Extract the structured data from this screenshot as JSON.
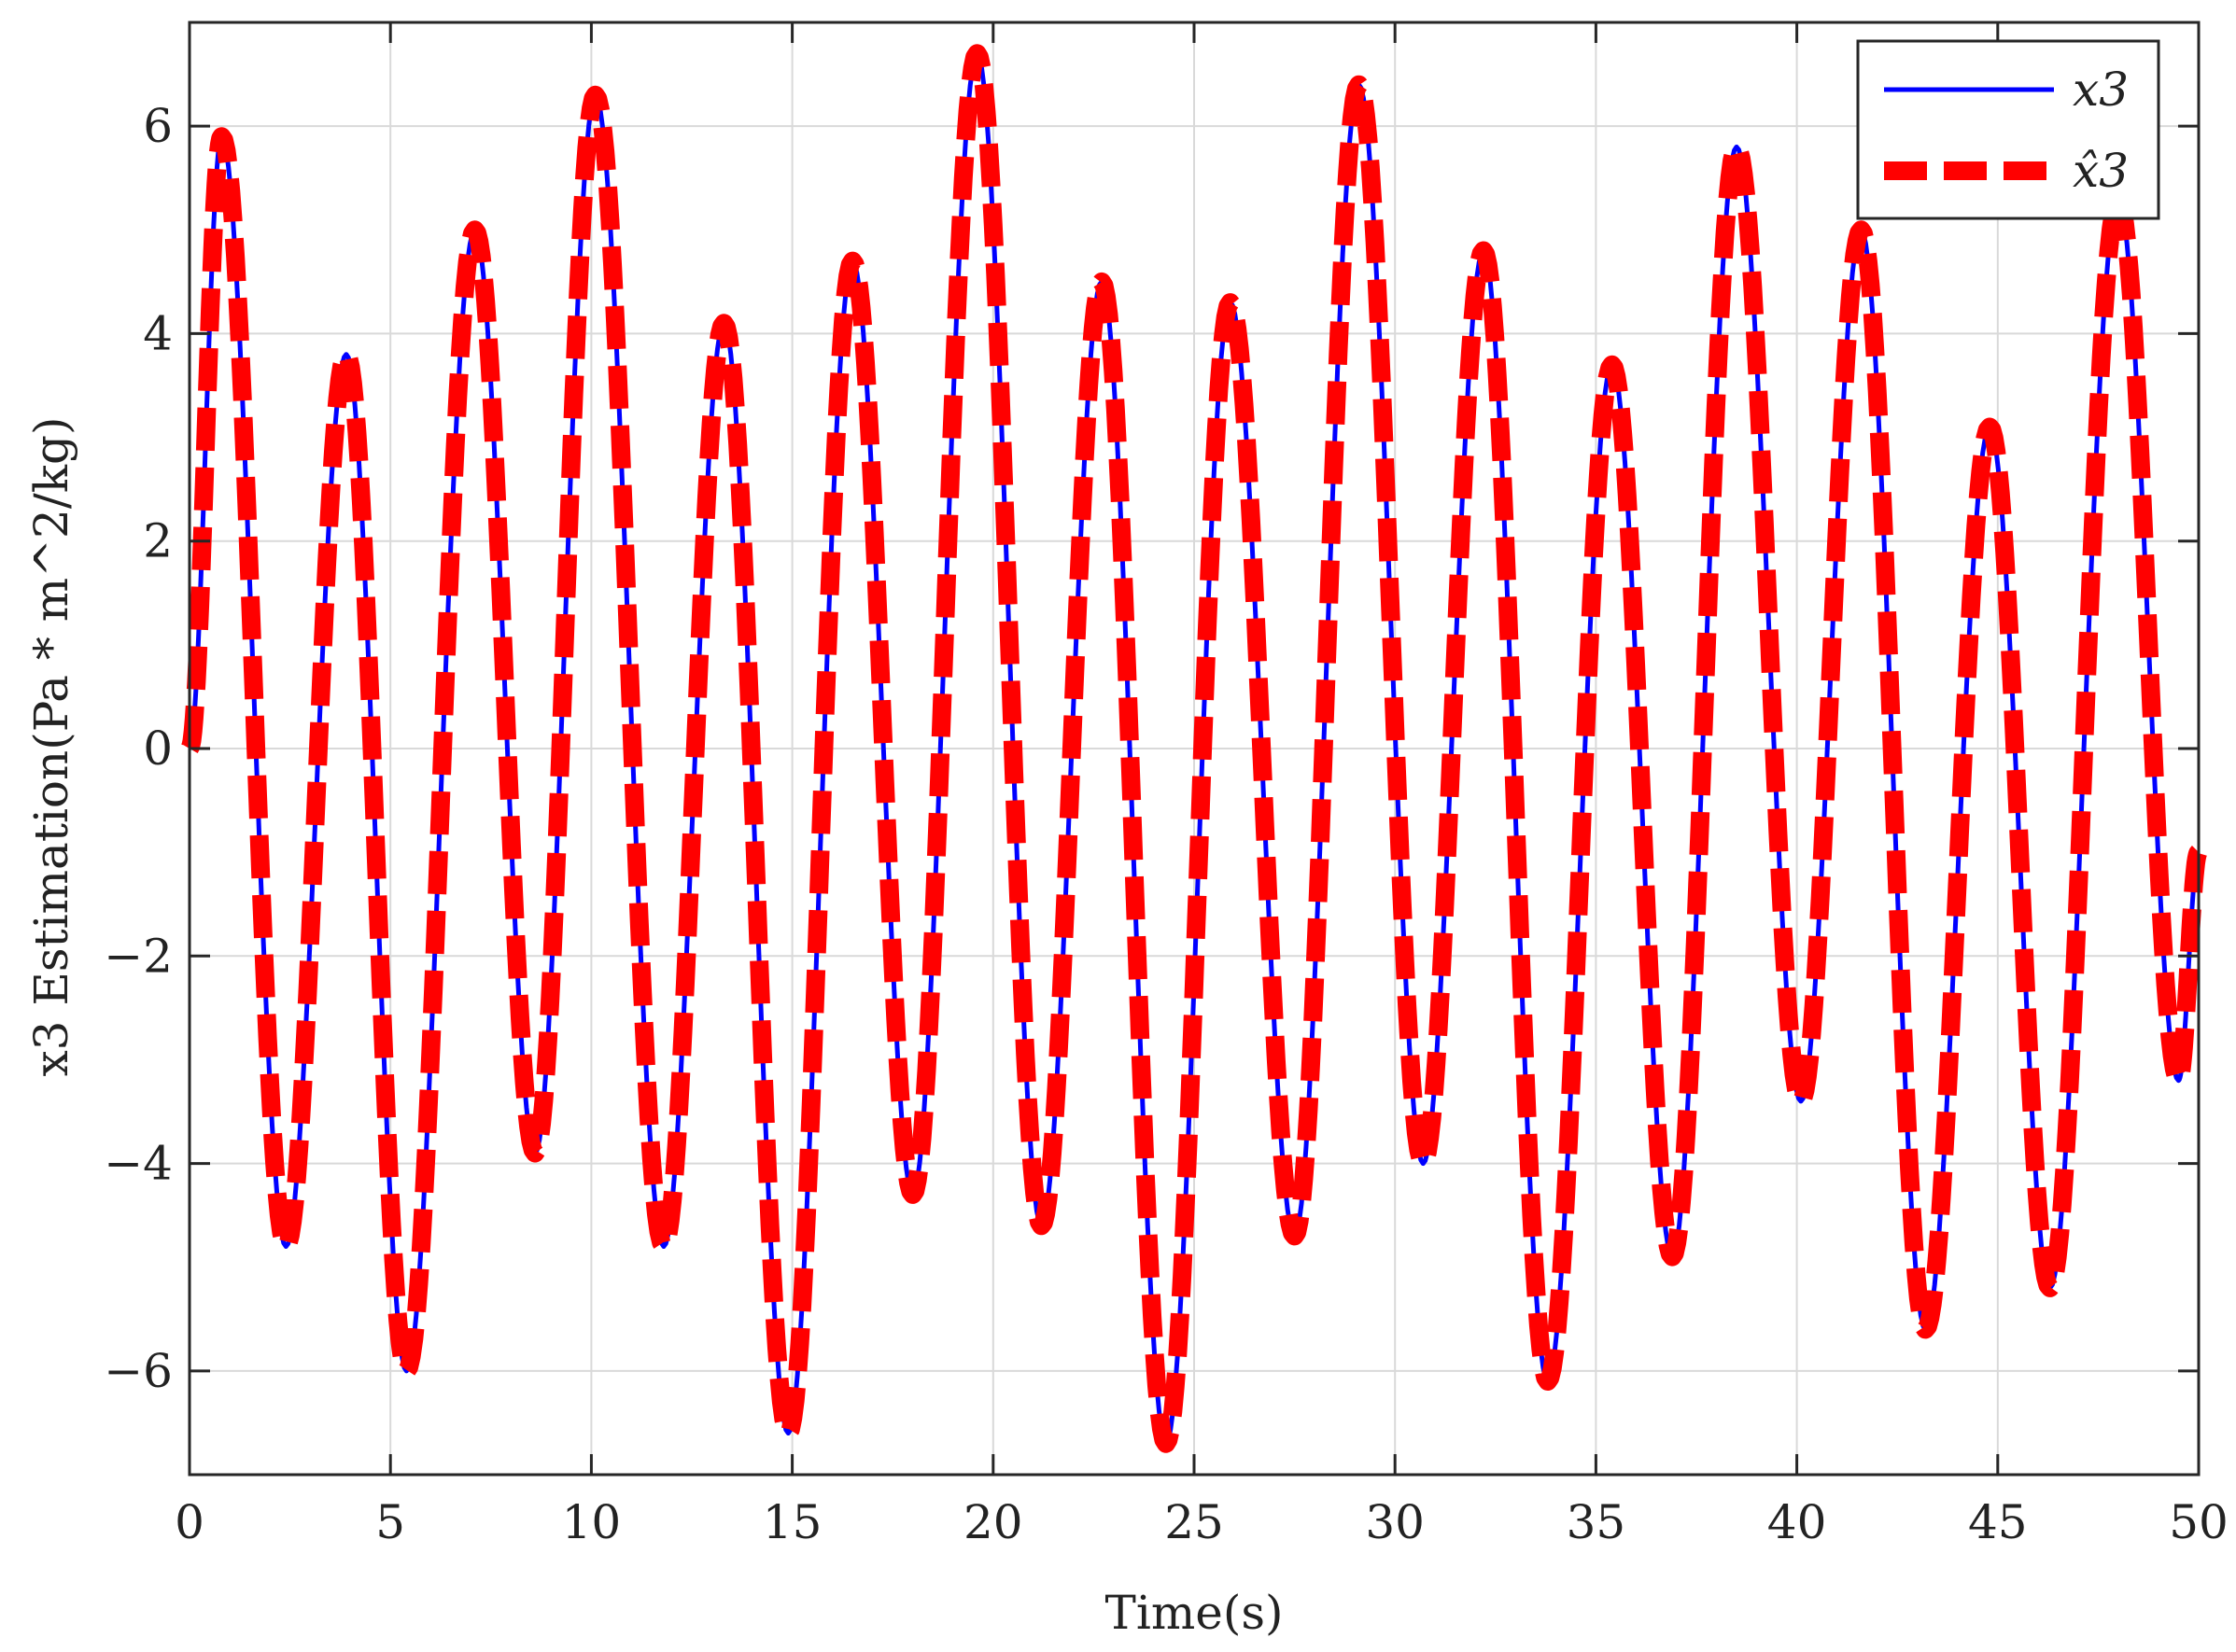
{
  "chart_data": {
    "type": "line",
    "title": "",
    "xlabel": "Time(s)",
    "ylabel": "x3 Estimation(Pa * m^2/kg)",
    "xlim": [
      0,
      50
    ],
    "ylim": [
      -7,
      7
    ],
    "xticks": [
      0,
      5,
      10,
      15,
      20,
      25,
      30,
      35,
      40,
      45,
      50
    ],
    "yticks": [
      -6,
      -4,
      -2,
      0,
      2,
      4,
      6
    ],
    "xtick_labels": [
      "0",
      "5",
      "10",
      "15",
      "20",
      "25",
      "30",
      "35",
      "40",
      "45",
      "50"
    ],
    "ytick_labels": [
      "−6",
      "−4",
      "−2",
      "0",
      "2",
      "4",
      "6"
    ],
    "grid": true,
    "legend_position": "top-right",
    "extrema": [
      [
        0,
        0
      ],
      [
        0.8,
        5.9
      ],
      [
        2.4,
        -4.8
      ],
      [
        3.9,
        3.8
      ],
      [
        5.4,
        -6.0
      ],
      [
        7.1,
        5.0
      ],
      [
        8.6,
        -3.9
      ],
      [
        10.1,
        6.3
      ],
      [
        11.8,
        -4.8
      ],
      [
        13.3,
        4.1
      ],
      [
        14.9,
        -6.6
      ],
      [
        16.5,
        4.7
      ],
      [
        18.0,
        -4.3
      ],
      [
        19.6,
        6.7
      ],
      [
        21.2,
        -4.6
      ],
      [
        22.7,
        4.5
      ],
      [
        24.3,
        -6.7
      ],
      [
        25.9,
        4.3
      ],
      [
        27.5,
        -4.7
      ],
      [
        29.1,
        6.4
      ],
      [
        30.7,
        -4.0
      ],
      [
        32.2,
        4.8
      ],
      [
        33.8,
        -6.1
      ],
      [
        35.4,
        3.7
      ],
      [
        36.9,
        -4.9
      ],
      [
        38.5,
        5.8
      ],
      [
        40.1,
        -3.4
      ],
      [
        41.6,
        5.0
      ],
      [
        43.2,
        -5.6
      ],
      [
        44.8,
        3.1
      ],
      [
        46.3,
        -5.2
      ],
      [
        48.0,
        5.3
      ],
      [
        49.5,
        -3.2
      ],
      [
        50,
        -1.0
      ]
    ],
    "series": [
      {
        "name": "x3",
        "color": "#0000ff",
        "style": "solid"
      },
      {
        "name": "x̂3",
        "color": "#ff0000",
        "style": "dashed"
      }
    ]
  }
}
